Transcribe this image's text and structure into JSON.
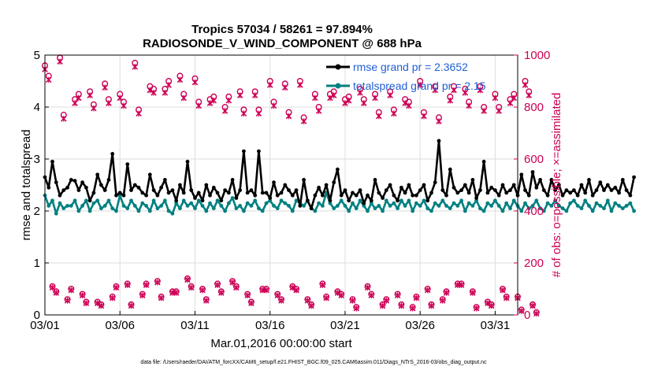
{
  "chart_data": {
    "type": "line",
    "title": "Tropics 57034 / 58261 = 97.894%",
    "subtitle": "RADIOSONDE_V_WIND_COMPONENT @ 688 hPa",
    "xlabel": "Mar.01,2016 00:00:00 start",
    "ylabel": "rmse and totalspread",
    "ylabel_right": "# of obs: o=possible; ×=assimilated",
    "footnote": "data file: /Users/raeder/DAI/ATM_forcXX/CAM6_setup/f.e21.FHIST_BGC.f09_025.CAM6assim.011/Diags_NTrS_2016-03/obs_diag_output.nc",
    "xlim": [
      1,
      32.5
    ],
    "ylim": [
      0,
      5
    ],
    "ylim_right": [
      0,
      1000
    ],
    "x_ticks": [
      1,
      6,
      11,
      16,
      21,
      26,
      31
    ],
    "x_tick_labels": [
      "03/01",
      "03/06",
      "03/11",
      "03/16",
      "03/21",
      "03/26",
      "03/31"
    ],
    "y_ticks": [
      0,
      1,
      2,
      3,
      4,
      5
    ],
    "y_tick_labels": [
      "0",
      "1",
      "2",
      "3",
      "4",
      "5"
    ],
    "y_right_ticks": [
      0,
      200,
      400,
      600,
      800,
      1000
    ],
    "y_right_tick_labels": [
      "0",
      "200",
      "400",
      "600",
      "800",
      "1000"
    ],
    "legend": [
      "rmse grand pr = 2.3652",
      "totalspread grand pr = 2.15"
    ],
    "legend_location": "top-right",
    "colors": {
      "rmse": "#000000",
      "spread": "#008080",
      "obs": "#cc0055",
      "legend_text": "#1f5fd6",
      "grid": "#dddddd"
    },
    "step_days": 0.25,
    "x_start": 1,
    "series": [
      {
        "name": "rmse",
        "axis": "left",
        "values": [
          2.65,
          2.45,
          2.95,
          2.55,
          2.3,
          2.4,
          2.45,
          2.6,
          2.58,
          2.4,
          2.55,
          2.45,
          2.2,
          2.35,
          2.7,
          2.5,
          2.4,
          2.6,
          3.1,
          2.3,
          2.35,
          2.3,
          2.9,
          2.4,
          2.5,
          2.45,
          2.35,
          2.3,
          2.7,
          2.4,
          2.3,
          2.45,
          2.6,
          2.35,
          2.4,
          2.2,
          2.5,
          2.35,
          2.95,
          2.4,
          2.25,
          2.35,
          2.2,
          2.5,
          2.3,
          2.45,
          2.35,
          2.2,
          2.4,
          2.35,
          2.6,
          2.25,
          2.4,
          3.15,
          2.35,
          2.4,
          2.3,
          3.15,
          2.35,
          2.35,
          2.25,
          2.55,
          2.3,
          2.35,
          2.5,
          2.4,
          2.3,
          2.4,
          2.1,
          2.6,
          2.2,
          2.05,
          2.3,
          2.45,
          2.3,
          2.5,
          2.2,
          2.55,
          2.8,
          2.3,
          2.4,
          2.2,
          2.35,
          2.3,
          2.4,
          2.15,
          2.3,
          2.2,
          2.6,
          2.35,
          2.25,
          2.4,
          2.5,
          2.3,
          2.2,
          2.45,
          2.35,
          2.5,
          2.3,
          2.3,
          2.4,
          2.5,
          2.2,
          2.35,
          2.55,
          3.35,
          2.4,
          2.3,
          2.8,
          2.45,
          2.35,
          2.4,
          2.5,
          2.35,
          2.6,
          2.25,
          2.4,
          2.95,
          2.35,
          2.45,
          2.4,
          2.3,
          2.5,
          2.35,
          2.4,
          2.5,
          2.3,
          2.7,
          2.4,
          2.3,
          2.75,
          2.45,
          2.6,
          2.4,
          2.3,
          2.6,
          2.4,
          2.5,
          2.3,
          2.4,
          2.35,
          2.4,
          2.3,
          2.5,
          2.35,
          2.6,
          2.3,
          2.4,
          2.55,
          2.4,
          2.5,
          2.4,
          2.45,
          2.35,
          2.6,
          2.4,
          2.3,
          2.65
        ]
      },
      {
        "name": "totalspread",
        "axis": "left",
        "values": [
          2.3,
          2.1,
          2.2,
          1.95,
          2.15,
          2.05,
          2.1,
          2.1,
          2.2,
          2.0,
          2.1,
          2.2,
          2.0,
          2.15,
          2.2,
          2.05,
          2.1,
          2.2,
          2.05,
          2.0,
          2.3,
          2.1,
          2.05,
          2.2,
          2.1,
          2.0,
          2.15,
          2.1,
          2.0,
          2.2,
          2.05,
          2.1,
          2.2,
          2.0,
          1.95,
          2.15,
          2.05,
          2.2,
          2.1,
          2.15,
          2.05,
          2.2,
          2.1,
          2.0,
          2.15,
          2.05,
          2.2,
          2.1,
          2.0,
          2.15,
          2.25,
          2.05,
          2.1,
          2.0,
          2.15,
          2.1,
          2.2,
          2.05,
          2.0,
          2.15,
          2.2,
          2.1,
          2.05,
          2.2,
          2.15,
          2.1,
          2.0,
          2.2,
          2.15,
          2.1,
          2.2,
          2.05,
          2.0,
          2.15,
          2.1,
          2.35,
          2.15,
          2.05,
          2.1,
          2.2,
          2.1,
          2.0,
          2.15,
          2.05,
          2.2,
          2.1,
          2.0,
          2.15,
          2.05,
          2.1,
          2.0,
          2.2,
          2.1,
          2.15,
          2.05,
          2.2,
          2.1,
          2.2,
          2.0,
          2.15,
          2.1,
          2.2,
          2.05,
          2.0,
          2.15,
          2.1,
          2.2,
          2.1,
          2.05,
          2.15,
          2.1,
          2.2,
          2.0,
          2.15,
          2.1,
          2.2,
          2.05,
          2.0,
          2.15,
          2.1,
          2.2,
          2.1,
          2.0,
          2.15,
          2.05,
          2.2,
          2.1,
          2.0,
          2.15,
          2.05,
          2.1,
          2.2,
          2.05,
          2.0,
          2.15,
          2.1,
          2.2,
          2.1,
          2.05,
          2.0,
          2.15,
          2.2,
          2.1,
          2.05,
          2.2,
          2.1,
          2.0,
          2.15,
          2.1,
          2.05,
          2.2,
          2.0,
          2.15,
          2.1,
          2.05,
          2.1,
          2.15,
          2.0
        ]
      },
      {
        "name": "obs_possible_00Z",
        "axis": "right",
        "values": [
          960,
          990,
          830,
          860,
          890,
          850,
          970,
          880,
          870,
          920,
          910,
          830,
          800,
          860,
          860,
          900,
          890,
          900,
          850,
          850,
          830,
          870,
          850,
          860,
          830,
          900,
          880,
          840,
          870,
          880,
          850,
          830,
          900
        ]
      },
      {
        "name": "obs_assimilated_00Z",
        "axis": "right",
        "values": [
          945,
          975,
          815,
          845,
          875,
          835,
          955,
          865,
          855,
          905,
          895,
          815,
          785,
          845,
          845,
          885,
          875,
          885,
          835,
          835,
          815,
          855,
          835,
          845,
          815,
          885,
          865,
          825,
          855,
          865,
          835,
          815,
          885
        ]
      },
      {
        "name": "obs_possible_06Z",
        "axis": "right",
        "values": [
          920,
          770,
          850,
          810,
          830,
          820,
          790,
          870,
          900,
          850,
          820,
          840,
          840,
          790,
          790,
          820,
          780,
          760,
          800,
          860,
          840,
          830,
          780,
          790,
          820,
          780,
          760,
          880,
          820,
          800,
          800,
          850,
          860
        ]
      },
      {
        "name": "obs_assimilated_06Z",
        "axis": "right",
        "values": [
          905,
          755,
          835,
          795,
          815,
          805,
          775,
          855,
          885,
          835,
          805,
          825,
          825,
          775,
          775,
          805,
          765,
          745,
          785,
          845,
          825,
          815,
          765,
          775,
          805,
          765,
          745,
          865,
          805,
          785,
          785,
          835,
          845
        ]
      },
      {
        "name": "obs_possible_12Z",
        "axis": "right",
        "values": [
          110,
          60,
          80,
          50,
          70,
          120,
          80,
          130,
          90,
          140,
          100,
          120,
          130,
          80,
          100,
          80,
          110,
          60,
          120,
          90,
          60,
          110,
          40,
          80,
          30,
          100,
          60,
          120,
          90,
          50,
          100,
          70,
          40
        ]
      },
      {
        "name": "obs_assimilated_12Z",
        "axis": "right",
        "values": [
          105,
          55,
          75,
          45,
          65,
          115,
          75,
          125,
          85,
          135,
          95,
          115,
          125,
          75,
          95,
          75,
          105,
          55,
          115,
          85,
          55,
          105,
          35,
          75,
          25,
          95,
          55,
          115,
          85,
          45,
          95,
          65,
          35
        ]
      },
      {
        "name": "obs_possible_18Z",
        "axis": "right",
        "values": [
          90,
          100,
          50,
          40,
          110,
          40,
          120,
          70,
          90,
          110,
          60,
          90,
          110,
          50,
          100,
          60,
          100,
          40,
          70,
          80,
          30,
          80,
          60,
          40,
          70,
          40,
          90,
          120,
          30,
          40,
          70,
          20,
          10
        ]
      },
      {
        "name": "obs_assimilated_18Z",
        "axis": "right",
        "values": [
          85,
          95,
          45,
          35,
          105,
          35,
          115,
          65,
          85,
          105,
          55,
          85,
          105,
          45,
          95,
          55,
          95,
          35,
          65,
          75,
          25,
          75,
          55,
          35,
          65,
          35,
          85,
          115,
          25,
          35,
          65,
          15,
          5
        ]
      }
    ]
  }
}
